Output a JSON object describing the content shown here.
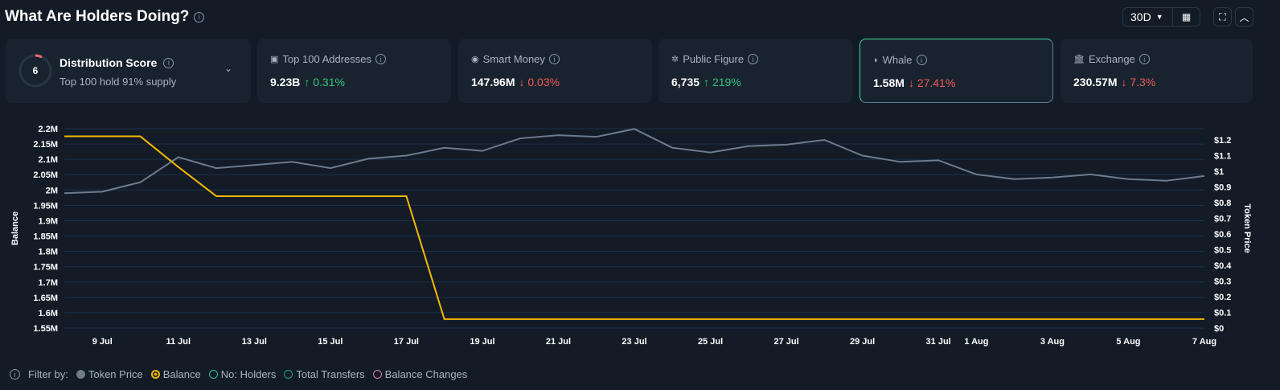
{
  "header": {
    "title": "What Are Holders Doing?",
    "range": "30D"
  },
  "distribution": {
    "score": "6",
    "title": "Distribution Score",
    "subtitle": "Top 100 hold 91% supply"
  },
  "cards": [
    {
      "label": "Top 100 Addresses",
      "icon": "wallet-icon",
      "value": "9.23B",
      "change": "0.31%",
      "dir": "up"
    },
    {
      "label": "Smart Money",
      "icon": "sunglasses-icon",
      "value": "147.96M",
      "change": "0.03%",
      "dir": "down"
    },
    {
      "label": "Public Figure",
      "icon": "star-person-icon",
      "value": "6,735",
      "change": "219%",
      "dir": "up"
    },
    {
      "label": "Whale",
      "icon": "whale-icon",
      "value": "1.58M",
      "change": "27.41%",
      "dir": "down",
      "selected": true
    },
    {
      "label": "Exchange",
      "icon": "bank-icon",
      "value": "230.57M",
      "change": "7.3%",
      "dir": "down"
    }
  ],
  "colors": {
    "accent": "#2fe0a0",
    "up": "#2fc57a",
    "down": "#ef5a5a",
    "balance": "#f5b800",
    "price": "#6e7b8b"
  },
  "filter": {
    "label": "Filter by:",
    "items": [
      {
        "label": "Token Price",
        "color": "#6e7b8b",
        "active": true
      },
      {
        "label": "Balance",
        "color": "#f5b800",
        "active": true
      },
      {
        "label": "No: Holders",
        "color": "#2fbfa8",
        "active": false
      },
      {
        "label": "Total Transfers",
        "color": "#1e9c8c",
        "active": false
      },
      {
        "label": "Balance Changes",
        "color": "#e07aa8",
        "active": false
      }
    ]
  },
  "chart_data": {
    "type": "line",
    "ylabel_left": "Balance",
    "ylabel_right": "Token Price",
    "left_ticks": [
      "1.55M",
      "1.6M",
      "1.65M",
      "1.7M",
      "1.75M",
      "1.8M",
      "1.85M",
      "1.9M",
      "1.95M",
      "2M",
      "2.05M",
      "2.1M",
      "2.15M",
      "2.2M"
    ],
    "right_ticks": [
      "$0",
      "$0.1",
      "$0.2",
      "$0.3",
      "$0.4",
      "$0.5",
      "$0.6",
      "$0.7",
      "$0.8",
      "$0.9",
      "$1",
      "$1.1",
      "$1.2"
    ],
    "ylim_left": [
      1.55,
      2.2
    ],
    "ylim_right": [
      0,
      1.2
    ],
    "x_ticks": [
      "9 Jul",
      "11 Jul",
      "13 Jul",
      "15 Jul",
      "17 Jul",
      "19 Jul",
      "21 Jul",
      "23 Jul",
      "25 Jul",
      "27 Jul",
      "29 Jul",
      "31 Jul",
      "1 Aug",
      "3 Aug",
      "5 Aug",
      "7 Aug"
    ],
    "x": [
      "8 Jul",
      "9 Jul",
      "10 Jul",
      "11 Jul",
      "12 Jul",
      "13 Jul",
      "14 Jul",
      "15 Jul",
      "16 Jul",
      "17 Jul",
      "18 Jul",
      "19 Jul",
      "20 Jul",
      "21 Jul",
      "22 Jul",
      "23 Jul",
      "24 Jul",
      "25 Jul",
      "26 Jul",
      "27 Jul",
      "28 Jul",
      "29 Jul",
      "30 Jul",
      "31 Jul",
      "1 Aug",
      "2 Aug",
      "3 Aug",
      "4 Aug",
      "5 Aug",
      "6 Aug",
      "7 Aug"
    ],
    "series": [
      {
        "name": "Token Price",
        "axis": "right",
        "values": [
          0.86,
          0.87,
          0.93,
          1.09,
          1.02,
          1.04,
          1.06,
          1.02,
          1.08,
          1.1,
          1.15,
          1.13,
          1.21,
          1.23,
          1.22,
          1.27,
          1.15,
          1.12,
          1.16,
          1.17,
          1.2,
          1.1,
          1.06,
          1.07,
          0.98,
          0.95,
          0.96,
          0.98,
          0.95,
          0.94,
          0.97
        ]
      },
      {
        "name": "Balance",
        "axis": "left",
        "step": true,
        "values": [
          2.175,
          2.175,
          2.175,
          2.075,
          1.98,
          1.98,
          1.98,
          1.98,
          1.98,
          1.98,
          1.579,
          1.579,
          1.579,
          1.579,
          1.579,
          1.579,
          1.579,
          1.579,
          1.579,
          1.579,
          1.579,
          1.579,
          1.579,
          1.579,
          1.579,
          1.579,
          1.579,
          1.579,
          1.579,
          1.579,
          1.579
        ]
      }
    ]
  }
}
